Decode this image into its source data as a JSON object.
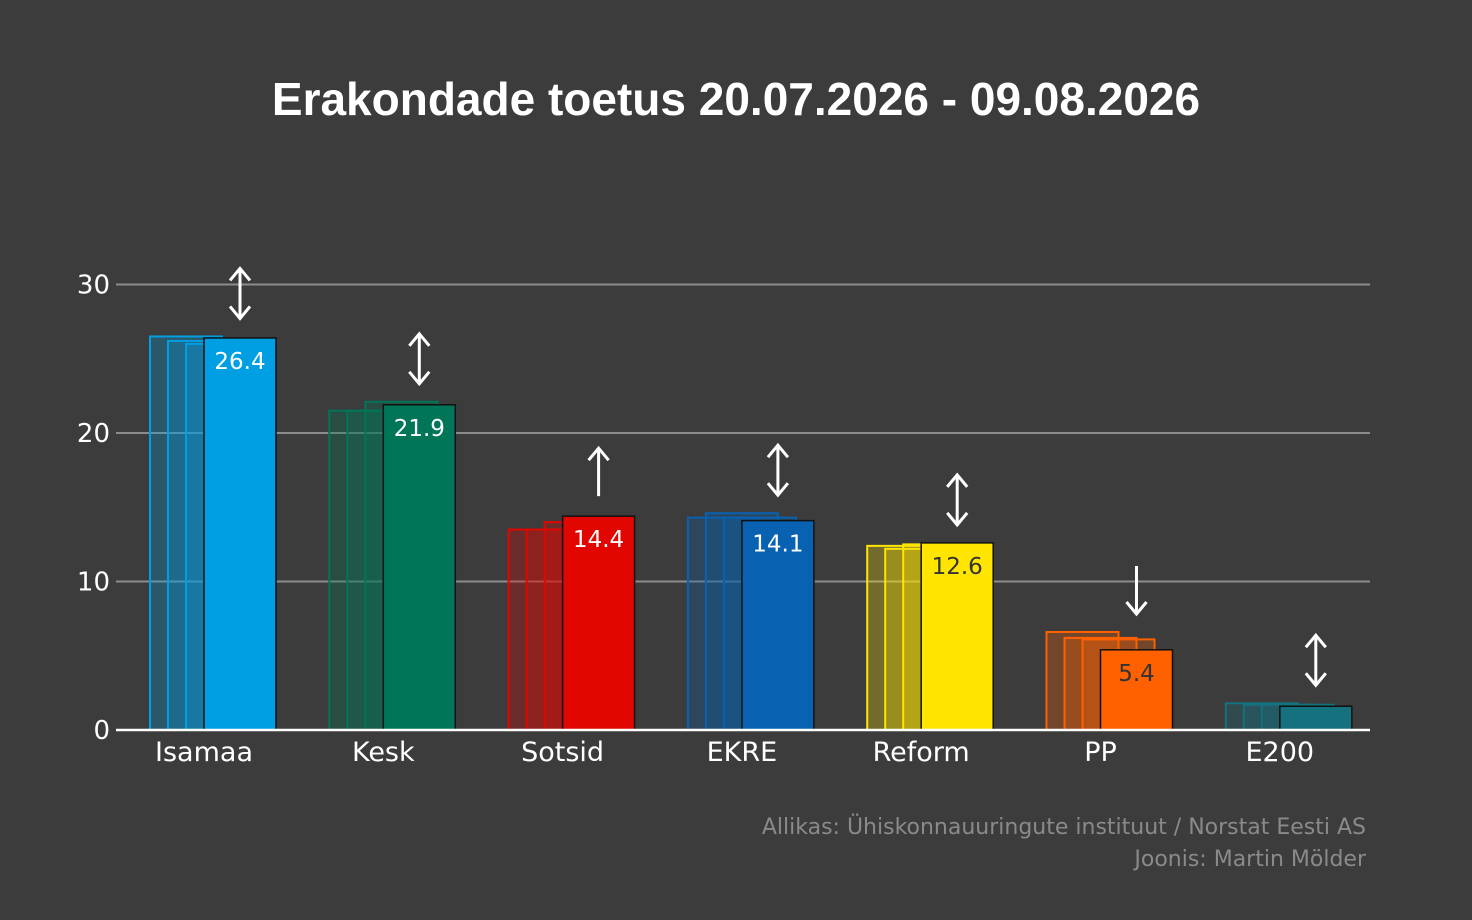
{
  "title": "Erakondade toetus 20.07.2026 - 09.08.2026",
  "source": "Allikas: Ühiskonnauuringute instituut / Norstat Eesti AS",
  "author": "Joonis: Martin Mölder",
  "chart_data": {
    "type": "bar",
    "title": "Erakondade toetus 20.07.2026 - 09.08.2026",
    "xlabel": "",
    "ylabel": "",
    "ylim": [
      0,
      30
    ],
    "yticks": [
      0,
      10,
      20,
      30
    ],
    "grid": true,
    "categories": [
      "Isamaa",
      "Kesk",
      "Sotsid",
      "EKRE",
      "Reform",
      "PP",
      "E200"
    ],
    "colors": [
      "#009fe3",
      "#007557",
      "#e10600",
      "#0861b1",
      "#ffe500",
      "#ff6000",
      "#16717e"
    ],
    "label_colors": [
      "#ffffff",
      "#ffffff",
      "#ffffff",
      "#ffffff",
      "#333333",
      "#333333",
      "#333333"
    ],
    "previous_values": [
      [
        26.5,
        26.2,
        26.0,
        26.4
      ],
      [
        21.5,
        21.5,
        22.1,
        21.9
      ],
      [
        13.5,
        13.5,
        14.0,
        14.4
      ],
      [
        14.3,
        14.6,
        14.3,
        14.1
      ],
      [
        12.4,
        12.2,
        12.5,
        12.6
      ],
      [
        6.6,
        6.2,
        6.1,
        5.4
      ],
      [
        1.8,
        1.7,
        1.7,
        1.6
      ]
    ],
    "values": [
      26.4,
      21.9,
      14.4,
      14.1,
      12.6,
      5.4,
      1.6
    ],
    "value_labels": [
      "26.4",
      "21.9",
      "14.4",
      "14.1",
      "12.6",
      "5.4",
      ""
    ],
    "trend": [
      "both",
      "both",
      "up",
      "both",
      "both",
      "down",
      "both"
    ]
  }
}
